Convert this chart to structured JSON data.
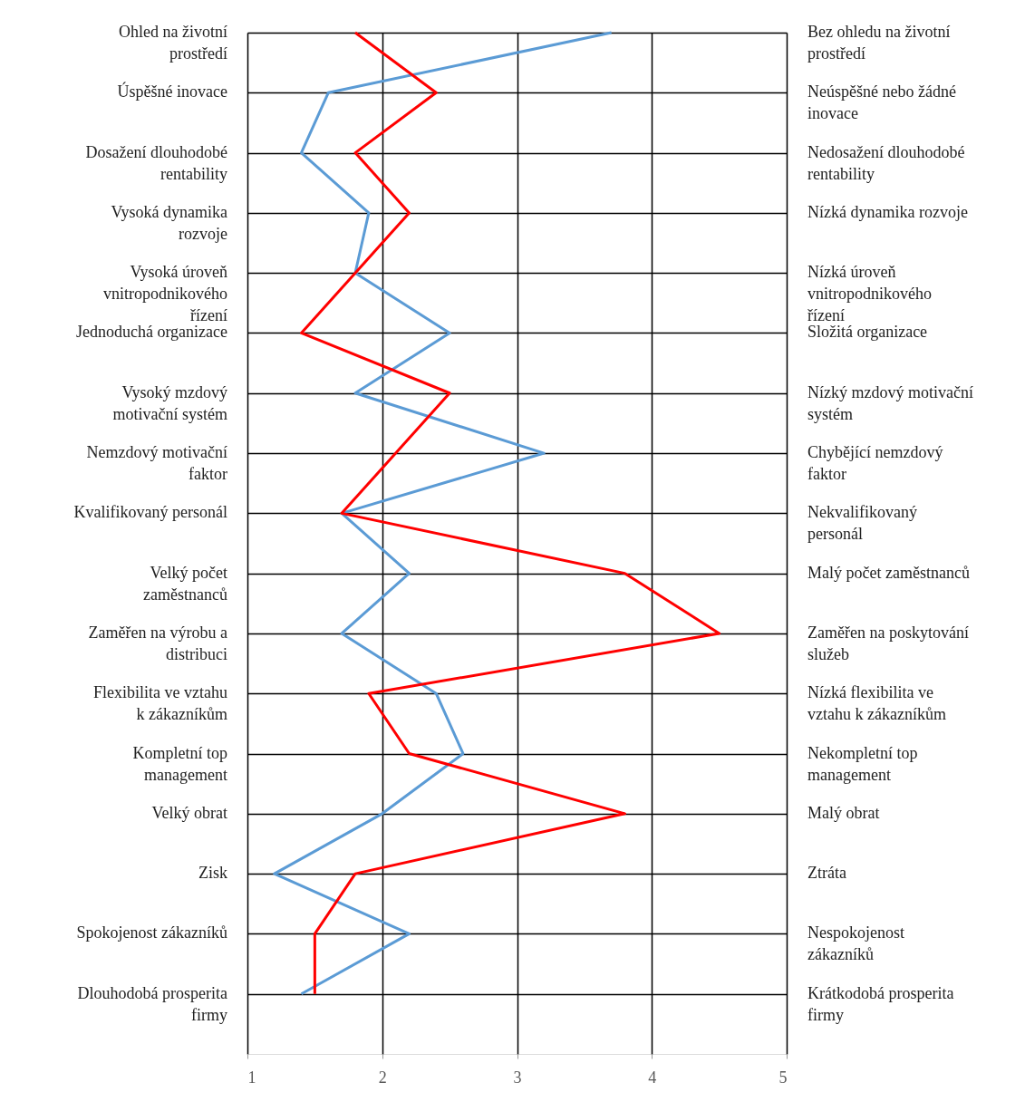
{
  "chart_data": {
    "type": "line",
    "orientation": "horizontal",
    "categories": [
      "Ohled na životní prostředí",
      "Úspěšné inovace",
      "Dosažení dlouhodobé rentability",
      "Vysoká dynamika rozvoje",
      "Vysoká úroveň vnitropodnikového řízení",
      "Jednoduchá organizace",
      "Vysoký mzdový motivační systém",
      "Nemzdový motivační faktor",
      "Kvalifikovaný personál",
      "Velký počet zaměstnanců",
      "Zaměřen na výrobu a distribuci",
      "Flexibilita ve vztahu k zákazníkům",
      "Kompletní top management",
      "Velký obrat",
      "Zisk",
      "Spokojenost zákazníků",
      "Dlouhodobá prosperita firmy"
    ],
    "y2_categories": [
      "Bez ohledu na životní prostředí",
      "Neúspěšné nebo žádné inovace",
      "Nedosažení dlouhodobé rentability",
      "Nízká dynamika rozvoje",
      "Nízká úroveň vnitropodnikového řízení",
      "Složitá organizace",
      "Nízký mzdový motivační systém",
      "Chybějící nemzdový faktor",
      "Nekvalifikovaný personál",
      "Malý počet zaměstnanců",
      "Zaměřen na poskytování služeb",
      "Nízká flexibilita ve vztahu k zákazníkům",
      "Nekompletní top management",
      "Malý obrat",
      "Ztráta",
      "Nespokojenost zákazníků",
      "Krátkodobá prosperita firmy"
    ],
    "series": [
      {
        "color": "#5b9bd5",
        "values": [
          3.7,
          1.6,
          1.4,
          1.9,
          1.8,
          2.5,
          1.8,
          3.2,
          1.7,
          2.2,
          1.7,
          2.4,
          2.6,
          2.0,
          1.2,
          2.2,
          1.4
        ]
      },
      {
        "color": "#ff0000",
        "values": [
          1.8,
          2.4,
          1.8,
          2.2,
          1.8,
          1.4,
          2.5,
          2.1,
          1.7,
          3.8,
          4.5,
          1.9,
          2.2,
          3.8,
          1.8,
          1.5,
          1.5
        ]
      }
    ],
    "xlim": [
      1,
      5
    ],
    "xticks": [
      1,
      2,
      3,
      4,
      5
    ],
    "grid": true
  }
}
